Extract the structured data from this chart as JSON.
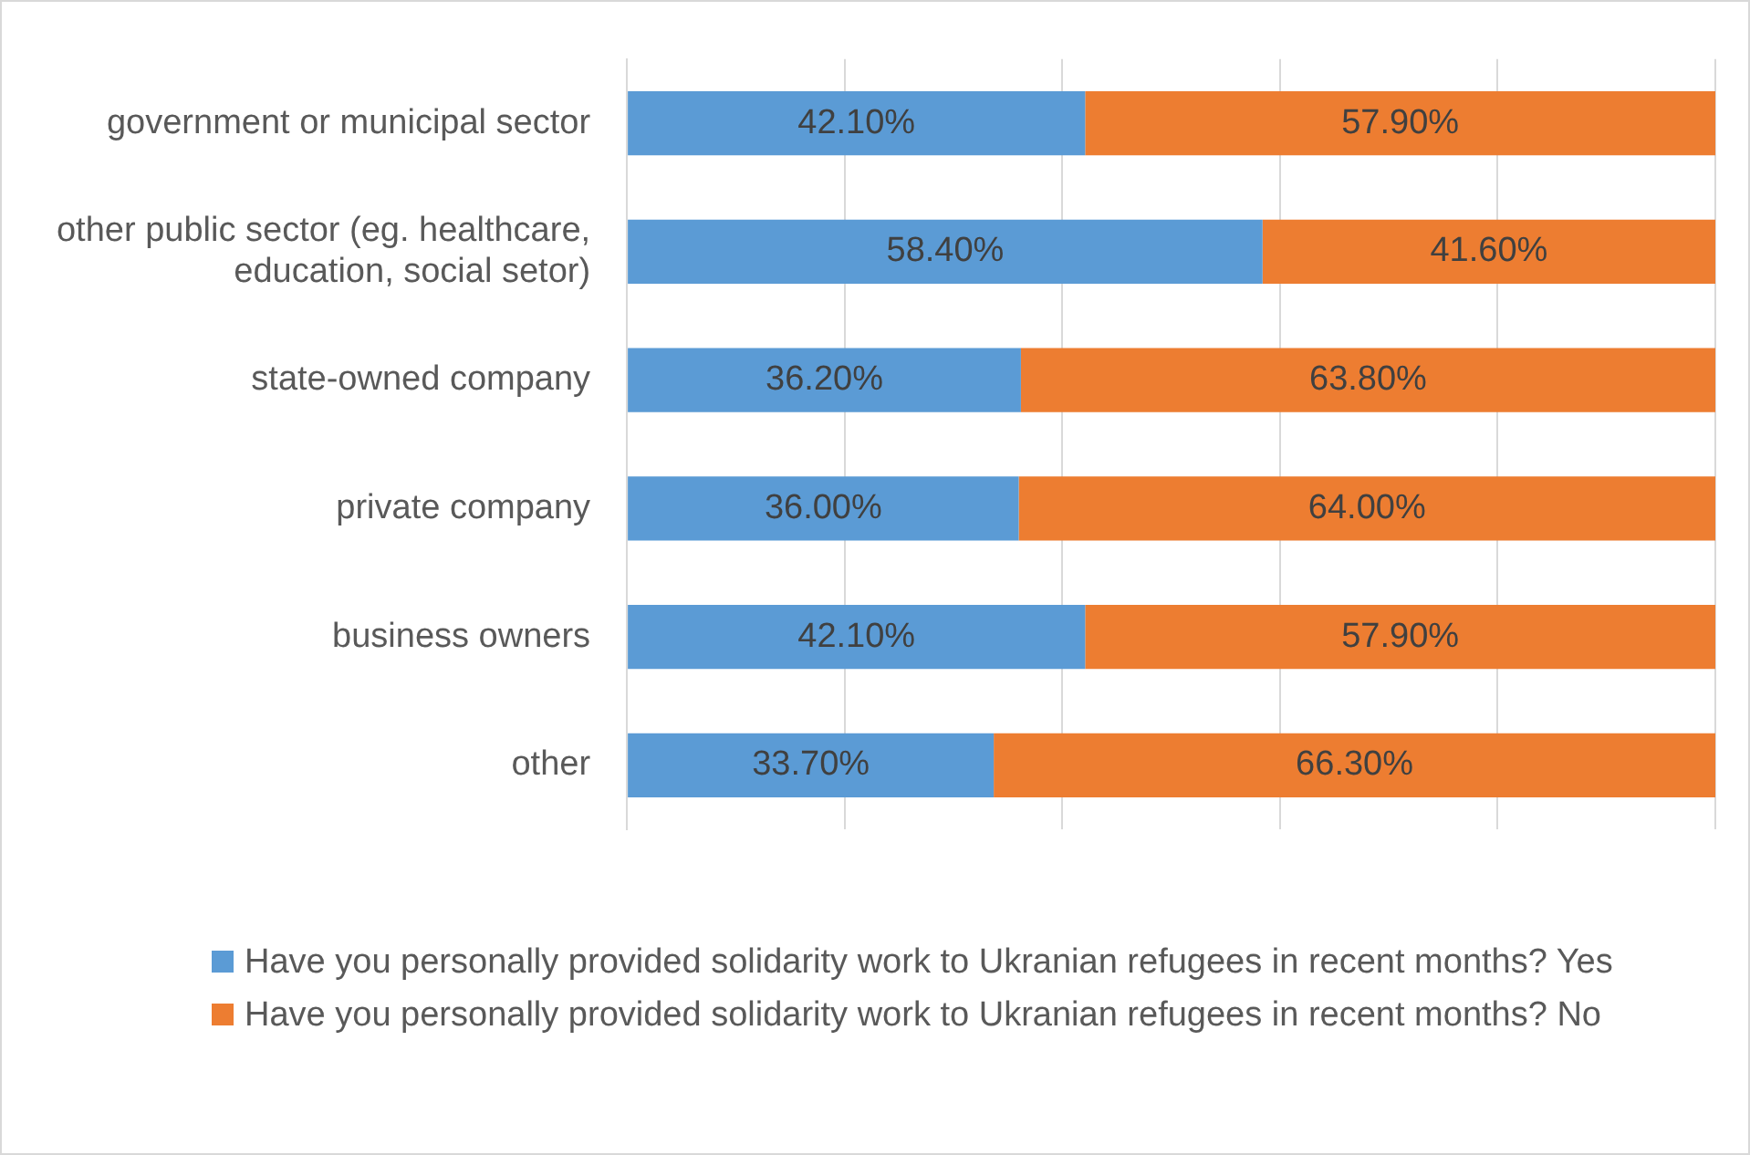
{
  "chart_data": {
    "type": "bar",
    "orientation": "horizontal",
    "stacked": true,
    "categories": [
      "government or municipal sector",
      "other public sector (eg. healthcare, education, social setor)",
      "state-owned company",
      "private company",
      "business owners",
      "other"
    ],
    "series": [
      {
        "name": "Have you personally provided solidarity work to Ukranian refugees in recent months?  Yes",
        "color": "#5b9bd5",
        "values": [
          42.1,
          58.4,
          36.2,
          36.0,
          42.1,
          33.7
        ],
        "value_labels": [
          "42.10%",
          "58.40%",
          "36.20%",
          "36.00%",
          "42.10%",
          "33.70%"
        ]
      },
      {
        "name": "Have you personally provided solidarity work to Ukranian refugees in recent months?  No",
        "color": "#ed7d31",
        "values": [
          57.9,
          41.6,
          63.8,
          64.0,
          57.9,
          66.3
        ],
        "value_labels": [
          "57.90%",
          "41.60%",
          "63.80%",
          "64.00%",
          "57.90%",
          "66.30%"
        ]
      }
    ],
    "xlim": [
      0,
      100
    ],
    "xticks": [
      {
        "value": 0,
        "label": null
      },
      {
        "value": 20,
        "label": null
      },
      {
        "value": 40,
        "label": null
      },
      {
        "value": 60,
        "label": null
      },
      {
        "value": 80,
        "label": null
      },
      {
        "value": 100,
        "label": null
      }
    ],
    "grid": "x",
    "tick_labels": "y",
    "legend": "bottom"
  }
}
